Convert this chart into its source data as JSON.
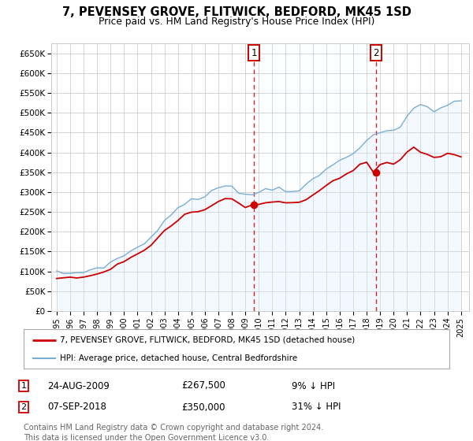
{
  "title": "7, PEVENSEY GROVE, FLITWICK, BEDFORD, MK45 1SD",
  "subtitle": "Price paid vs. HM Land Registry's House Price Index (HPI)",
  "ylabel_ticks": [
    "£0",
    "£50K",
    "£100K",
    "£150K",
    "£200K",
    "£250K",
    "£300K",
    "£350K",
    "£400K",
    "£450K",
    "£500K",
    "£550K",
    "£600K",
    "£650K"
  ],
  "ytick_values": [
    0,
    50000,
    100000,
    150000,
    200000,
    250000,
    300000,
    350000,
    400000,
    450000,
    500000,
    550000,
    600000,
    650000
  ],
  "xlim_start": 1994.6,
  "xlim_end": 2025.6,
  "ylim_min": 0,
  "ylim_max": 675000,
  "legend1": "7, PEVENSEY GROVE, FLITWICK, BEDFORD, MK45 1SD (detached house)",
  "legend2": "HPI: Average price, detached house, Central Bedfordshire",
  "sale1_date": 2009.65,
  "sale1_price": 267500,
  "sale2_date": 2018.68,
  "sale2_price": 350000,
  "footnote1": "Contains HM Land Registry data © Crown copyright and database right 2024.",
  "footnote2": "This data is licensed under the Open Government Licence v3.0.",
  "table_row1": [
    "1",
    "24-AUG-2009",
    "£267,500",
    "9% ↓ HPI"
  ],
  "table_row2": [
    "2",
    "07-SEP-2018",
    "£350,000",
    "31% ↓ HPI"
  ],
  "red_color": "#cc0000",
  "blue_color": "#7aadd4",
  "blue_fill_color": "#ddeeff",
  "bg_color": "#ffffff",
  "grid_color": "#cccccc",
  "legend_border_color": "#aaaaaa",
  "footnote_color": "#666666",
  "years_hpi": [
    1995.0,
    1995.5,
    1996.0,
    1996.5,
    1997.0,
    1997.5,
    1998.0,
    1998.5,
    1999.0,
    1999.5,
    2000.0,
    2000.5,
    2001.0,
    2001.5,
    2002.0,
    2002.5,
    2003.0,
    2003.5,
    2004.0,
    2004.5,
    2005.0,
    2005.5,
    2006.0,
    2006.5,
    2007.0,
    2007.5,
    2008.0,
    2008.5,
    2009.0,
    2009.5,
    2010.0,
    2010.5,
    2011.0,
    2011.5,
    2012.0,
    2012.5,
    2013.0,
    2013.5,
    2014.0,
    2014.5,
    2015.0,
    2015.5,
    2016.0,
    2016.5,
    2017.0,
    2017.5,
    2018.0,
    2018.5,
    2019.0,
    2019.5,
    2020.0,
    2020.5,
    2021.0,
    2021.5,
    2022.0,
    2022.5,
    2023.0,
    2023.5,
    2024.0,
    2024.5,
    2025.0
  ],
  "hpi_values": [
    97000,
    96000,
    95000,
    96000,
    99000,
    104000,
    109000,
    113000,
    121000,
    131000,
    141000,
    152000,
    160000,
    170000,
    187000,
    207000,
    227000,
    242000,
    260000,
    273000,
    279000,
    281000,
    289000,
    299000,
    311000,
    319000,
    316000,
    303000,
    292000,
    294000,
    301000,
    306000,
    309000,
    311000,
    306000,
    303000,
    306000,
    316000,
    329000,
    343000,
    356000,
    369000,
    379000,
    389000,
    401000,
    416000,
    429000,
    439000,
    449000,
    456000,
    451000,
    463000,
    491000,
    511000,
    521000,
    516000,
    506000,
    511000,
    519000,
    526000,
    531000
  ],
  "red_values": [
    85000,
    84000,
    83000,
    84000,
    87000,
    91000,
    95000,
    99000,
    107000,
    116000,
    125000,
    135000,
    142000,
    151000,
    166000,
    184000,
    202000,
    215000,
    231000,
    243000,
    248000,
    250000,
    257000,
    266000,
    277000,
    284000,
    281000,
    270000,
    260000,
    262000,
    268000,
    273000,
    275000,
    277000,
    273000,
    270000,
    273000,
    281000,
    293000,
    305000,
    316000,
    328000,
    337000,
    345000,
    355000,
    368000,
    375000,
    350000,
    370000,
    375000,
    370000,
    380000,
    400000,
    415000,
    400000,
    395000,
    388000,
    390000,
    395000,
    395000,
    390000
  ]
}
